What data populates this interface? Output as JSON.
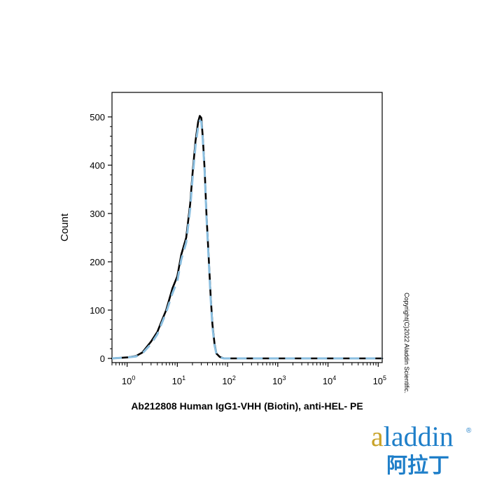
{
  "chart_data": {
    "type": "line",
    "xlabel": "Ab212808 Human IgG1-VHH (Biotin), anti-HEL- PE",
    "ylabel": "Count",
    "xscale": "log",
    "xlim": [
      0.5,
      120000
    ],
    "ylim": [
      0,
      520
    ],
    "x_ticks": [
      {
        "base": "10",
        "exp": "0"
      },
      {
        "base": "10",
        "exp": "1"
      },
      {
        "base": "10",
        "exp": "2"
      },
      {
        "base": "10",
        "exp": "3"
      },
      {
        "base": "10",
        "exp": "4"
      },
      {
        "base": "10",
        "exp": "5"
      }
    ],
    "y_ticks": [
      "0",
      "100",
      "200",
      "300",
      "400",
      "500"
    ],
    "grid": false,
    "series": [
      {
        "style": "solid",
        "color": "#000000",
        "x": [
          0.5,
          1,
          1.5,
          2,
          3,
          4,
          5,
          6,
          8,
          10,
          12,
          15,
          18,
          20,
          23,
          26,
          28,
          30,
          32,
          35,
          38,
          42,
          46,
          50,
          55,
          60,
          70,
          85,
          100,
          1000,
          10000,
          120000
        ],
        "y": [
          0,
          2,
          5,
          12,
          35,
          55,
          80,
          100,
          145,
          170,
          215,
          250,
          320,
          380,
          450,
          490,
          502,
          498,
          460,
          390,
          300,
          210,
          130,
          70,
          30,
          10,
          3,
          0,
          0,
          0,
          0,
          0
        ]
      },
      {
        "style": "dashed",
        "color": "#8bbfe0",
        "x": [
          0.5,
          1,
          1.5,
          2,
          3,
          4,
          5,
          6,
          8,
          10,
          12,
          15,
          18,
          20,
          23,
          26,
          28,
          30,
          32,
          35,
          38,
          42,
          46,
          50,
          55,
          60,
          70,
          85,
          100,
          1000,
          10000,
          120000
        ],
        "y": [
          0,
          2,
          4,
          10,
          30,
          50,
          75,
          95,
          135,
          160,
          205,
          240,
          310,
          370,
          440,
          480,
          492,
          490,
          455,
          385,
          295,
          205,
          125,
          65,
          27,
          9,
          2,
          0,
          0,
          0,
          0,
          0
        ]
      }
    ]
  },
  "copyright": "Copyright(C)2022 Aladdin Scientific.",
  "logo": {
    "en_a": "a",
    "en_rest": "laddin",
    "registered": "®",
    "cn": "阿拉丁"
  },
  "colors": {
    "logo_blue": "#1f7fc9",
    "logo_gold": "#c9a227",
    "dashed_series": "#8bbfe0"
  }
}
